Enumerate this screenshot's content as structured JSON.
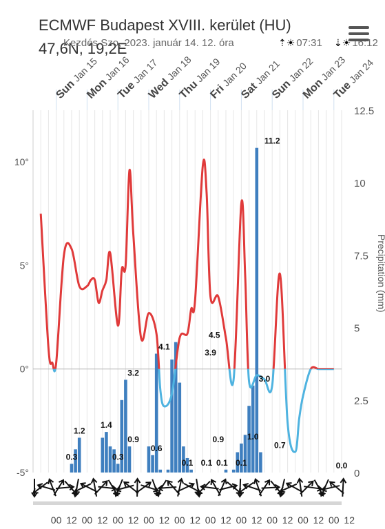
{
  "header": {
    "title": "ECMWF Budapest XVIII. kerület (HU)",
    "coords": "47,6N, 19,2E",
    "start_info": "Kezdés Szo, 2023. január 14. 12. óra",
    "sunrise": "07:31",
    "sunset": "16:12",
    "sunrise_icon": "sunrise-icon",
    "sunset_icon": "sunset-icon",
    "menu_icon": "hamburger-menu-icon"
  },
  "chart_data": {
    "type": "line+bar",
    "days": [
      {
        "weekday": "Sun",
        "date": "Jan 15"
      },
      {
        "weekday": "Mon",
        "date": "Jan 16"
      },
      {
        "weekday": "Tue",
        "date": "Jan 17"
      },
      {
        "weekday": "Wed",
        "date": "Jan 18"
      },
      {
        "weekday": "Thu",
        "date": "Jan 19"
      },
      {
        "weekday": "Fri",
        "date": "Jan 20"
      },
      {
        "weekday": "Sat",
        "date": "Jan 21"
      },
      {
        "weekday": "Sun",
        "date": "Jan 22"
      },
      {
        "weekday": "Mon",
        "date": "Jan 23"
      },
      {
        "weekday": "Tue",
        "date": "Jan 24"
      }
    ],
    "hour_labels": [
      "00",
      "12",
      "00",
      "12",
      "00",
      "12",
      "00",
      "12",
      "00",
      "12",
      "00",
      "12",
      "00",
      "12",
      "00",
      "12",
      "00",
      "12",
      "00",
      "12"
    ],
    "y_left": {
      "ticks": [
        "10°",
        "5°",
        "0°",
        "-5°"
      ],
      "values": [
        10,
        5,
        0,
        -5
      ],
      "range": [
        -5,
        12.5
      ]
    },
    "y_right": {
      "ticks": [
        "12.5",
        "10",
        "7.5",
        "5",
        "2.5",
        "0"
      ],
      "values": [
        12.5,
        10,
        7.5,
        5,
        2.5,
        0
      ],
      "label": "Precipitation (mm)"
    },
    "temperature": {
      "unit": "°C",
      "x_hours": [
        12,
        18,
        21,
        24,
        30,
        36,
        42,
        48,
        51,
        54,
        57,
        60,
        63,
        66,
        72,
        75,
        78,
        81,
        84,
        90,
        96,
        102,
        105,
        108,
        114,
        120,
        126,
        129,
        132,
        138,
        141,
        144,
        150,
        156,
        162,
        168,
        171,
        174,
        180,
        186,
        192,
        198,
        204,
        210,
        213,
        216,
        222,
        228,
        234,
        240
      ],
      "values": [
        7.5,
        1.0,
        0.3,
        0.3,
        5.5,
        5.8,
        4.0,
        4.0,
        4.3,
        4.3,
        3.2,
        3.8,
        4.3,
        5.6,
        2.1,
        4.8,
        5.0,
        9.6,
        6.5,
        1.5,
        2.7,
        1.7,
        -1.0,
        -1.8,
        -1.2,
        1.5,
        1.7,
        2.9,
        3.3,
        9.8,
        8.5,
        3.5,
        3.5,
        1.5,
        -0.5,
        8.0,
        4.5,
        -0.6,
        -0.3,
        -0.5,
        -0.8,
        4.6,
        -2.6,
        -4.0,
        -2.4,
        -1.3,
        0.0,
        0.0,
        0.0,
        0.0
      ]
    },
    "precip_bars": {
      "x_hours": [
        36,
        39,
        42,
        60,
        63,
        66,
        69,
        72,
        75,
        78,
        81,
        96,
        99,
        102,
        105,
        108,
        111,
        114,
        117,
        120,
        123,
        126,
        129,
        132,
        135,
        156,
        159,
        162,
        165,
        168,
        171,
        174,
        177,
        180,
        183,
        186,
        189
      ],
      "values": [
        0.3,
        0.8,
        1.2,
        1.2,
        1.4,
        0.9,
        0.8,
        0.3,
        2.5,
        3.2,
        0.9,
        0.9,
        0.6,
        4.1,
        0.1,
        0.0,
        0.1,
        3.9,
        4.5,
        3.1,
        0.9,
        0.5,
        0.1,
        0.0,
        0.0,
        0.1,
        0.0,
        0.1,
        0.7,
        1.0,
        1.3,
        2.3,
        3.0,
        11.2,
        0.7,
        0.0,
        0.0
      ]
    },
    "bar_labels": [
      {
        "x": 36,
        "v": "0.3"
      },
      {
        "x": 42,
        "v": "1.2"
      },
      {
        "x": 63,
        "v": "1.4"
      },
      {
        "x": 72,
        "v": "0.3"
      },
      {
        "x": 84,
        "v": "3.2"
      },
      {
        "x": 84,
        "v": "0.9"
      },
      {
        "x": 102,
        "v": "0.6"
      },
      {
        "x": 108,
        "v": "4.1"
      },
      {
        "x": 126,
        "v": "0.1"
      },
      {
        "x": 141,
        "v": "0.1"
      },
      {
        "x": 144,
        "v": "3.9"
      },
      {
        "x": 147,
        "v": "4.5"
      },
      {
        "x": 150,
        "v": "0.9"
      },
      {
        "x": 153,
        "v": "0.1"
      },
      {
        "x": 168,
        "v": "0.1"
      },
      {
        "x": 177,
        "v": "1.0"
      },
      {
        "x": 186,
        "v": "3.0"
      },
      {
        "x": 192,
        "v": "11.2"
      },
      {
        "x": 198,
        "v": "0.7"
      },
      {
        "x": 246,
        "v": "0.0"
      }
    ],
    "colors": {
      "warm": "#e03a3a",
      "cold": "#4fb3e0",
      "bars": "#3f7fbf",
      "grid": "#e6e6e6",
      "zero_line": "#b3b3b3"
    },
    "wind_arrows_count": 52
  }
}
